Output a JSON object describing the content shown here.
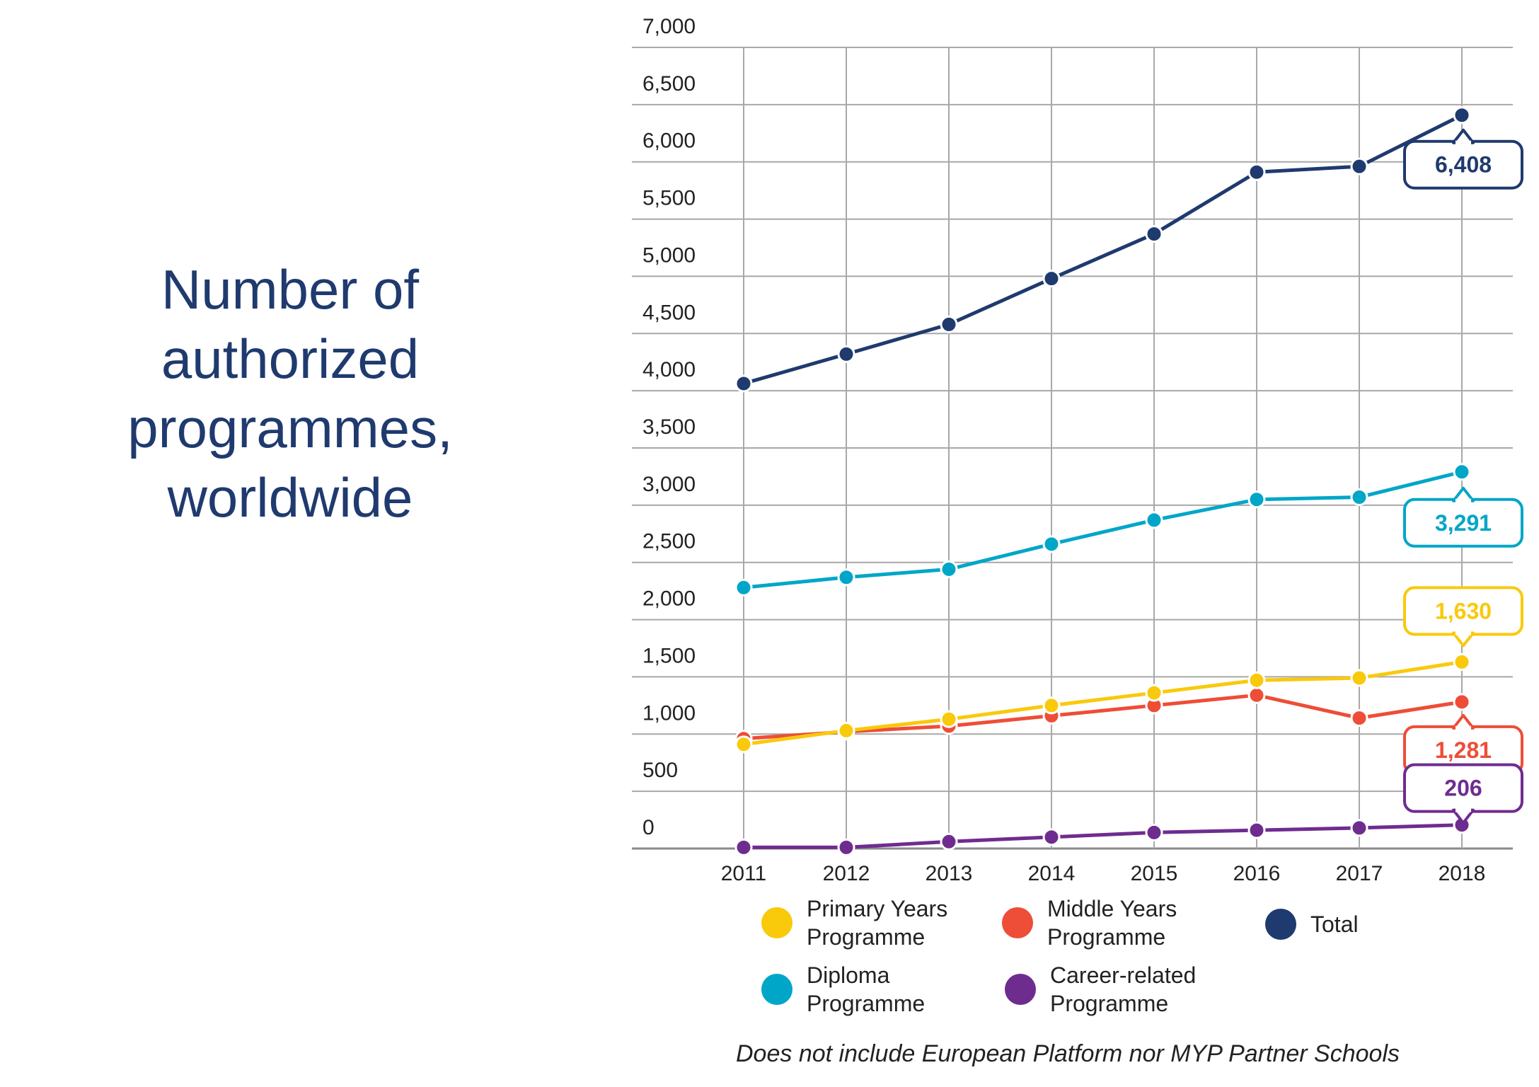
{
  "title": "Number of\nauthorized\nprogrammes,\nworldwide",
  "footnote": "Does not include European Platform nor MYP Partner Schools",
  "chart_data": {
    "type": "line",
    "x": [
      "2011",
      "2012",
      "2013",
      "2014",
      "2015",
      "2016",
      "2017",
      "2018"
    ],
    "ylim": [
      0,
      7000
    ],
    "yticks": [
      "0",
      "500",
      "1,000",
      "1,500",
      "2,000",
      "2,500",
      "3,000",
      "3,500",
      "4,000",
      "4,500",
      "5,000",
      "5,500",
      "6,000",
      "6,500",
      "7,000"
    ],
    "grid": true,
    "series": [
      {
        "key": "total",
        "name": "Total",
        "color": "#1f3a6e",
        "values": [
          4063,
          4320,
          4580,
          4980,
          5370,
          5910,
          5960,
          6408
        ],
        "callout": "6,408"
      },
      {
        "key": "dp",
        "name": "Diploma\nProgramme",
        "color": "#00a6c8",
        "values": [
          2280,
          2370,
          2440,
          2660,
          2870,
          3050,
          3070,
          3291
        ],
        "callout": "3,291"
      },
      {
        "key": "pyp",
        "name": "Primary Years\nProgramme",
        "color": "#f9c90c",
        "values": [
          910,
          1030,
          1130,
          1250,
          1360,
          1470,
          1490,
          1630
        ],
        "callout": "1,630"
      },
      {
        "key": "myp",
        "name": "Middle Years\nProgramme",
        "color": "#ee4d37",
        "values": [
          960,
          1020,
          1070,
          1160,
          1250,
          1340,
          1140,
          1281
        ],
        "callout": "1,281"
      },
      {
        "key": "cp",
        "name": "Career-related\nProgramme",
        "color": "#6f2c8f",
        "values": [
          10,
          10,
          60,
          100,
          140,
          160,
          180,
          206
        ],
        "callout": "206"
      }
    ],
    "legend_position": "bottom"
  }
}
